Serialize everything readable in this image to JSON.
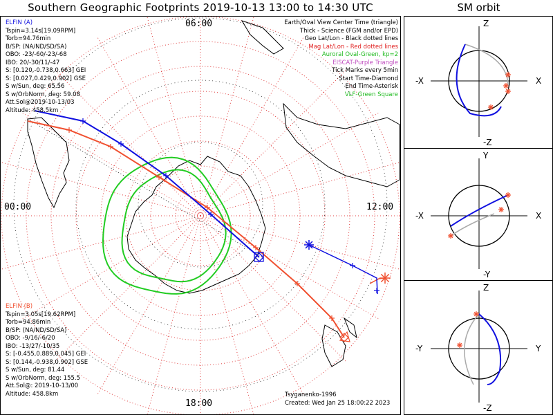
{
  "title": "Southern Geographic Footprints 2019-10-13 13:00 to 14:30 UTC",
  "sm_title": "SM orbit",
  "time_labels": {
    "top": "06:00",
    "left": "00:00",
    "right": "12:00",
    "bottom": "18:00"
  },
  "colors": {
    "elfin_a": "#1010e0",
    "elfin_b": "#f05030",
    "aurora": "#22cc22",
    "grid": "#e04040",
    "geo": "#000000"
  },
  "elfin_a": {
    "name": "ELFIN (A)",
    "lines": [
      "Tspin=3.14s[19.09RPM]",
      "Torb=94.76min",
      "B/SP: (NA/ND/SD/SA)",
      "OBO: -23/-60/-23/-68",
      "IBO: 20/-30/11/-47",
      "S: [0.120,-0.738,0.663] GEI",
      "S: [0.027,0.429,0.902] GSE",
      "S w/Sun, deg: 65.56",
      "S w/OrbNorm, deg: 59.08",
      "Att.Sol@2019-10-13/03",
      "Altitude: 458.5km"
    ]
  },
  "elfin_b": {
    "name": "ELFIN (B)",
    "lines": [
      "Tspin=3.05s[19.62RPM]",
      "Torb=94.86min",
      "B/SP: (NA/ND/SD/SA)",
      "OBO: -9/16/-6/20",
      "IBO: -13/27/-10/35",
      "S: [-0.455,0.889,0.045] GEI",
      "S: [0.144,-0.938,0.902] GSE",
      "S w/Sun, deg: 81.44",
      "S w/OrbNorm, deg: 155.5",
      "Att.Sol@: 2019-10-13/00",
      "Altitude: 458.8km"
    ]
  },
  "legend": [
    {
      "text": "Earth/Oval View Center Time (triangle)",
      "color": "#000000"
    },
    {
      "text": "Thick - Science (FGM and/or EPD)",
      "color": "#000000"
    },
    {
      "text": "Geo Lat/Lon - Black dotted lines",
      "color": "#000000"
    },
    {
      "text": "Mag Lat/Lon - Red dotted lines",
      "color": "#e02020"
    },
    {
      "text": "Auroral Oval-Green, kp=2",
      "color": "#22bb22"
    },
    {
      "text": "EISCAT-Purple Triangle",
      "color": "#c050c0"
    },
    {
      "text": "Tick Marks every 5min",
      "color": "#000000"
    },
    {
      "text": "Start Time-Diamond",
      "color": "#000000"
    },
    {
      "text": "End Time-Asterisk",
      "color": "#000000"
    },
    {
      "text": "VLF-Green Square",
      "color": "#22bb22"
    }
  ],
  "credits": {
    "author": "Tsyganenko-1996",
    "created": "Created: Wed Jan 25 18:00:22 2023"
  },
  "sm_panels": [
    {
      "name": "xz",
      "top": "Z",
      "bottom": "-Z",
      "left": "-X",
      "right": "X"
    },
    {
      "name": "xy",
      "top": "Y",
      "bottom": "-Y",
      "left": "-X",
      "right": "X"
    },
    {
      "name": "yz",
      "top": "Z",
      "bottom": "-Z",
      "left": "-Y",
      "right": "Y"
    }
  ]
}
